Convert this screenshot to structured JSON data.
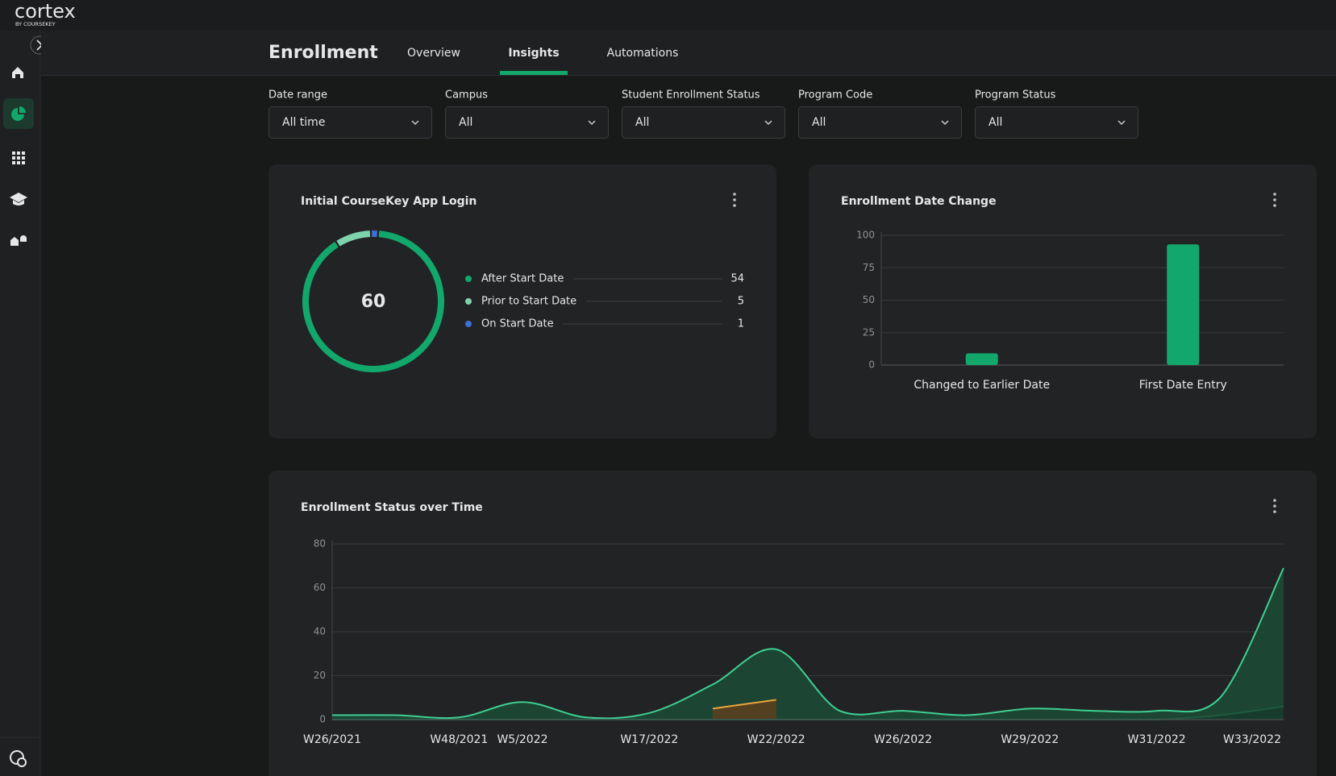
{
  "app": {
    "brand": "cortex",
    "brand_sub": "BY COURSEKEY"
  },
  "header": {
    "title": "Enrollment",
    "tabs": [
      {
        "label": "Overview",
        "active": false
      },
      {
        "label": "Insights",
        "active": true
      },
      {
        "label": "Automations",
        "active": false
      }
    ]
  },
  "filters": [
    {
      "label": "Date range",
      "value": "All time"
    },
    {
      "label": "Campus",
      "value": "All"
    },
    {
      "label": "Student Enrollment Status",
      "value": "All"
    },
    {
      "label": "Program Code",
      "value": "All"
    },
    {
      "label": "Program Status",
      "value": "All"
    }
  ],
  "chart_data": [
    {
      "type": "donut",
      "title": "Initial CourseKey App Login",
      "total": 60,
      "categories": [
        "After Start Date",
        "Prior to Start Date",
        "On Start Date"
      ],
      "values": [
        54,
        5,
        1
      ],
      "colors": [
        "#12a86c",
        "#7ed3ad",
        "#3d6fd6"
      ]
    },
    {
      "type": "bar",
      "title": "Enrollment Date Change",
      "categories": [
        "Changed to Earlier Date",
        "First Date Entry"
      ],
      "values": [
        9,
        93
      ],
      "color": "#12a86c",
      "ylim": [
        0,
        100
      ],
      "yticks": [
        0,
        25,
        50,
        75,
        100
      ],
      "grid": true
    },
    {
      "type": "area",
      "title": "Enrollment Status over Time",
      "categories": [
        "W26/2021",
        null,
        "W48/2021",
        "W5/2022",
        null,
        "W17/2022",
        null,
        "W22/2022",
        null,
        "W26/2022",
        null,
        "W29/2022",
        null,
        "W31/2022",
        null,
        "W33/2022"
      ],
      "series": [
        {
          "color": "#3fcf94",
          "fill": "#1c4a35",
          "values": [
            2,
            2,
            1,
            8,
            1,
            3,
            16,
            32,
            4,
            4,
            2,
            5,
            4,
            4,
            10,
            69
          ]
        },
        {
          "color": "#e8a33c",
          "fill": "#5a3f1e",
          "values": [
            null,
            null,
            null,
            null,
            null,
            null,
            5,
            9,
            null,
            null,
            null,
            null,
            null,
            null,
            null,
            null
          ]
        },
        {
          "color": "#1f5a40",
          "fill": "#173a2b",
          "values": [
            0,
            0,
            0,
            0,
            0,
            0,
            0,
            0,
            0,
            0,
            0,
            0,
            0,
            0,
            2,
            6
          ]
        }
      ],
      "ylim": [
        0,
        80
      ],
      "yticks": [
        0,
        20,
        40,
        60,
        80
      ],
      "grid": true
    }
  ]
}
